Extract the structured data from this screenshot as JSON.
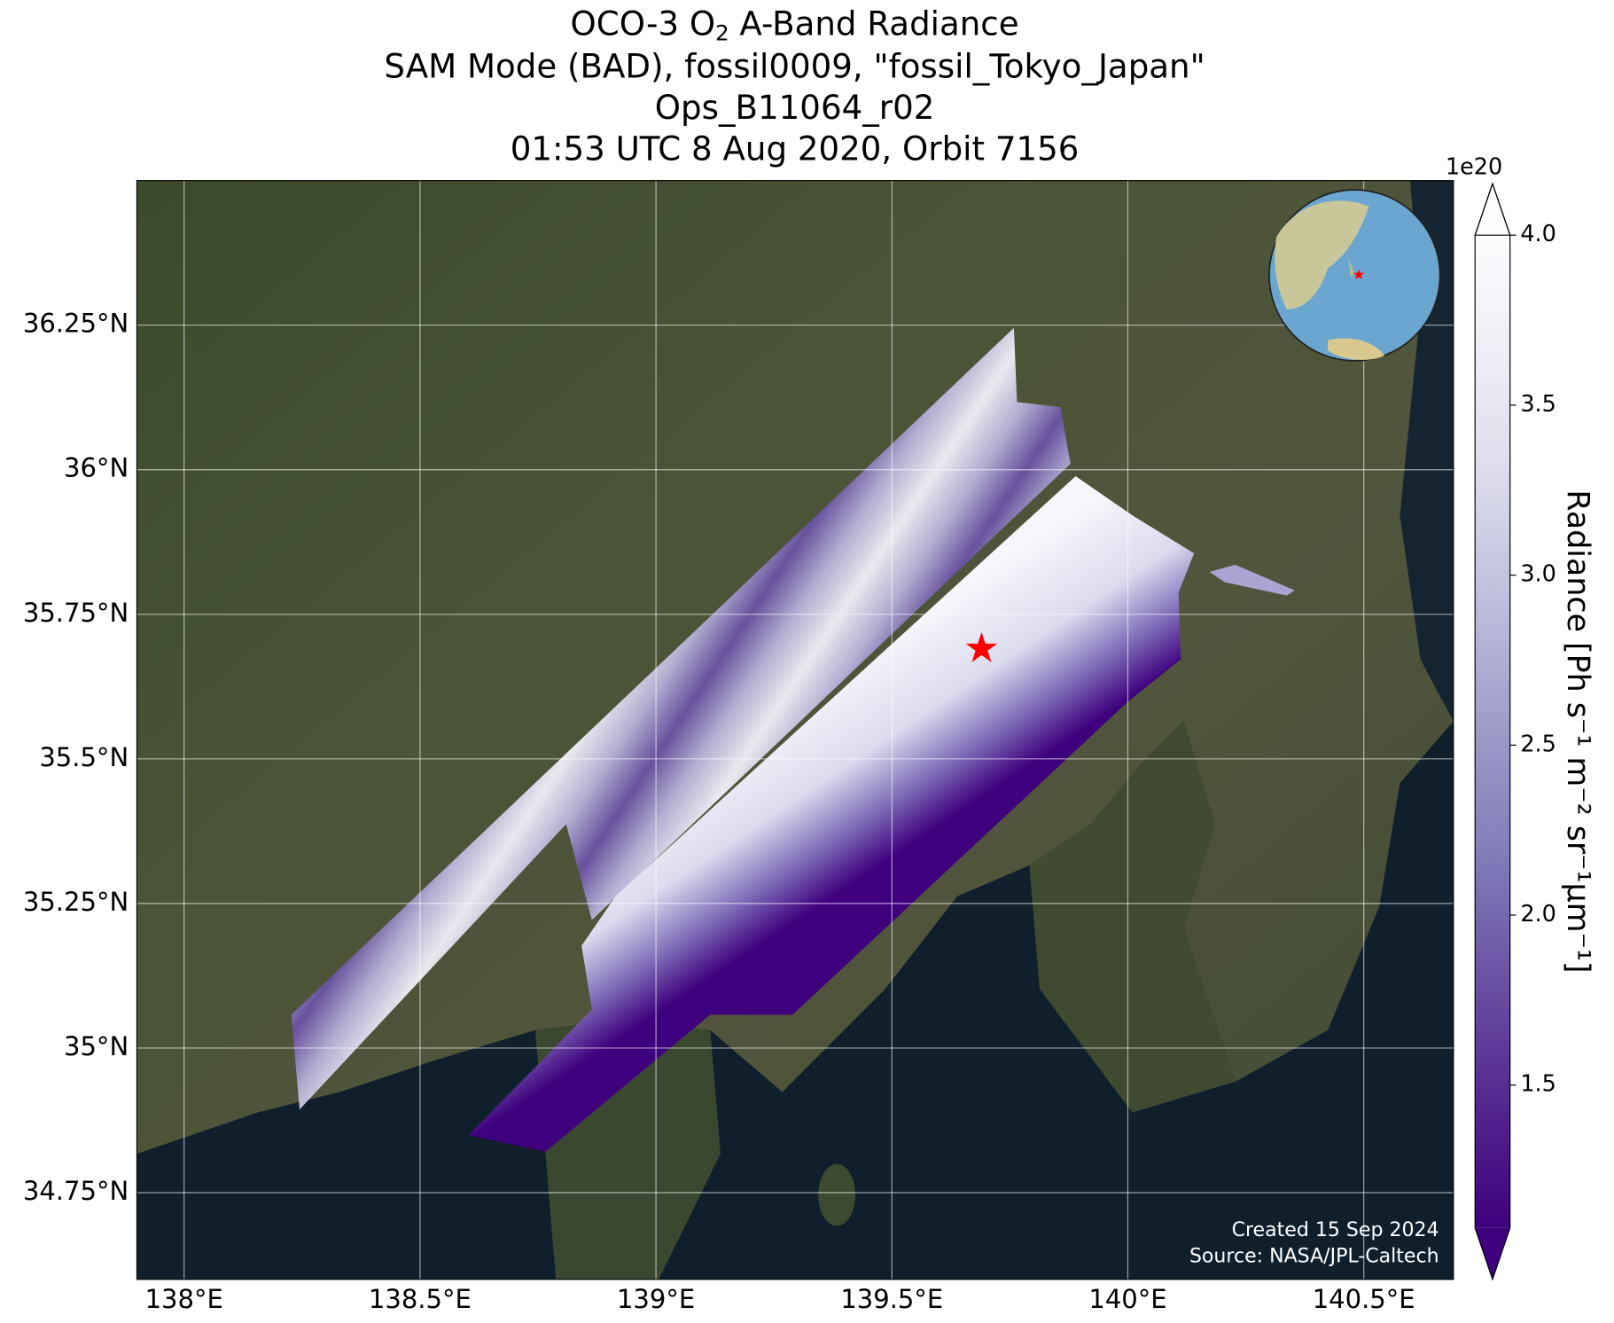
{
  "title_line1": {
    "before": "OCO-3 O",
    "subscript": "2",
    "after": " A-Band Radiance"
  },
  "title_lines": [
    "SAM Mode (BAD), fossil0009, \"fossil_Tokyo_Japan\"",
    "Ops_B11064_r02",
    "01:53 UTC 8 Aug 2020, Orbit 7156"
  ],
  "map": {
    "xlim": [
      137.9,
      140.69
    ],
    "ylim": [
      34.6,
      36.5
    ],
    "xticks": [
      {
        "value": 138,
        "label": "138°E"
      },
      {
        "value": 138.5,
        "label": "138.5°E"
      },
      {
        "value": 139,
        "label": "139°E"
      },
      {
        "value": 139.5,
        "label": "139.5°E"
      },
      {
        "value": 140,
        "label": "140°E"
      },
      {
        "value": 140.5,
        "label": "140.5°E"
      }
    ],
    "yticks": [
      {
        "value": 34.75,
        "label": "34.75°N"
      },
      {
        "value": 35,
        "label": "35°N"
      },
      {
        "value": 35.25,
        "label": "35.25°N"
      },
      {
        "value": 35.5,
        "label": "35.5°N"
      },
      {
        "value": 35.75,
        "label": "35.75°N"
      },
      {
        "value": 36,
        "label": "36°N"
      },
      {
        "value": 36.25,
        "label": "36.25°N"
      }
    ],
    "grid": true,
    "target": {
      "lon": 139.69,
      "lat": 35.69,
      "color": "#ff0000"
    }
  },
  "colorbar": {
    "label": "Radiance [Ph s⁻¹ m⁻² sr⁻¹μm⁻¹]",
    "exponent": "1e20",
    "lim": [
      1.08,
      4.0
    ],
    "ticks": [
      1.5,
      {
        "value": 2,
        "label": "2.0"
      },
      2.5,
      {
        "value": 3,
        "label": "3.0"
      },
      3.5,
      {
        "value": 4,
        "label": "4.0"
      }
    ],
    "colors": [
      "#3f007d",
      "#54278f",
      "#6a51a3",
      "#807dba",
      "#9e9ac8",
      "#bcbddc",
      "#dadaeb",
      "#efedf5",
      "#fcfbfd"
    ]
  },
  "credit": [
    "Created 15 Sep 2024",
    "Source: NASA/JPL-Caltech"
  ]
}
